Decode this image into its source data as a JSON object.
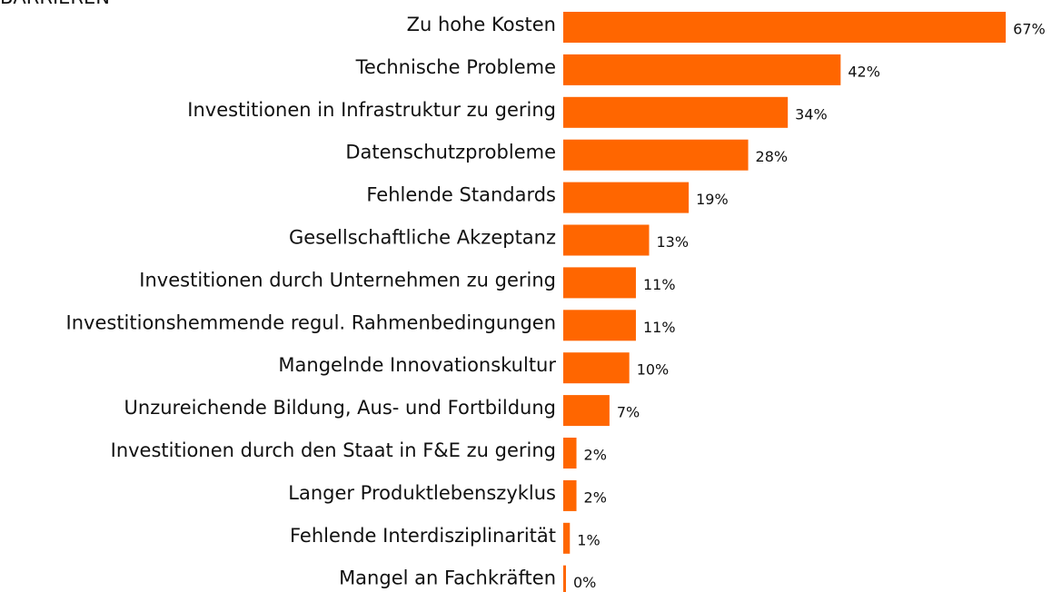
{
  "chart_data": {
    "type": "bar",
    "orientation": "horizontal",
    "title": "BARRIEREN",
    "categories": [
      "Zu hohe Kosten",
      "Technische Probleme",
      "Investitionen in Infrastruktur zu gering",
      "Datenschutzprobleme",
      "Fehlende Standards",
      "Gesellschaftliche Akzeptanz",
      "Investitionen durch Unternehmen zu gering",
      "Investitionshemmende regul. Rahmenbedingungen",
      "Mangelnde Innovationskultur",
      "Unzureichende Bildung, Aus-  und Fortbildung",
      "Investitionen durch den Staat in F&E zu gering",
      "Langer Produktlebenszyklus",
      "Fehlende Interdisziplinarität",
      "Mangel an Fachkräften"
    ],
    "values": [
      67,
      42,
      34,
      28,
      19,
      13,
      11,
      11,
      10,
      7,
      2,
      2,
      1,
      0
    ],
    "value_labels": [
      "67%",
      "42%",
      "34%",
      "28%",
      "19%",
      "13%",
      "11%",
      "11%",
      "10%",
      "7%",
      "2%",
      "2%",
      "1%",
      "0%"
    ],
    "color": "#ff6600"
  }
}
